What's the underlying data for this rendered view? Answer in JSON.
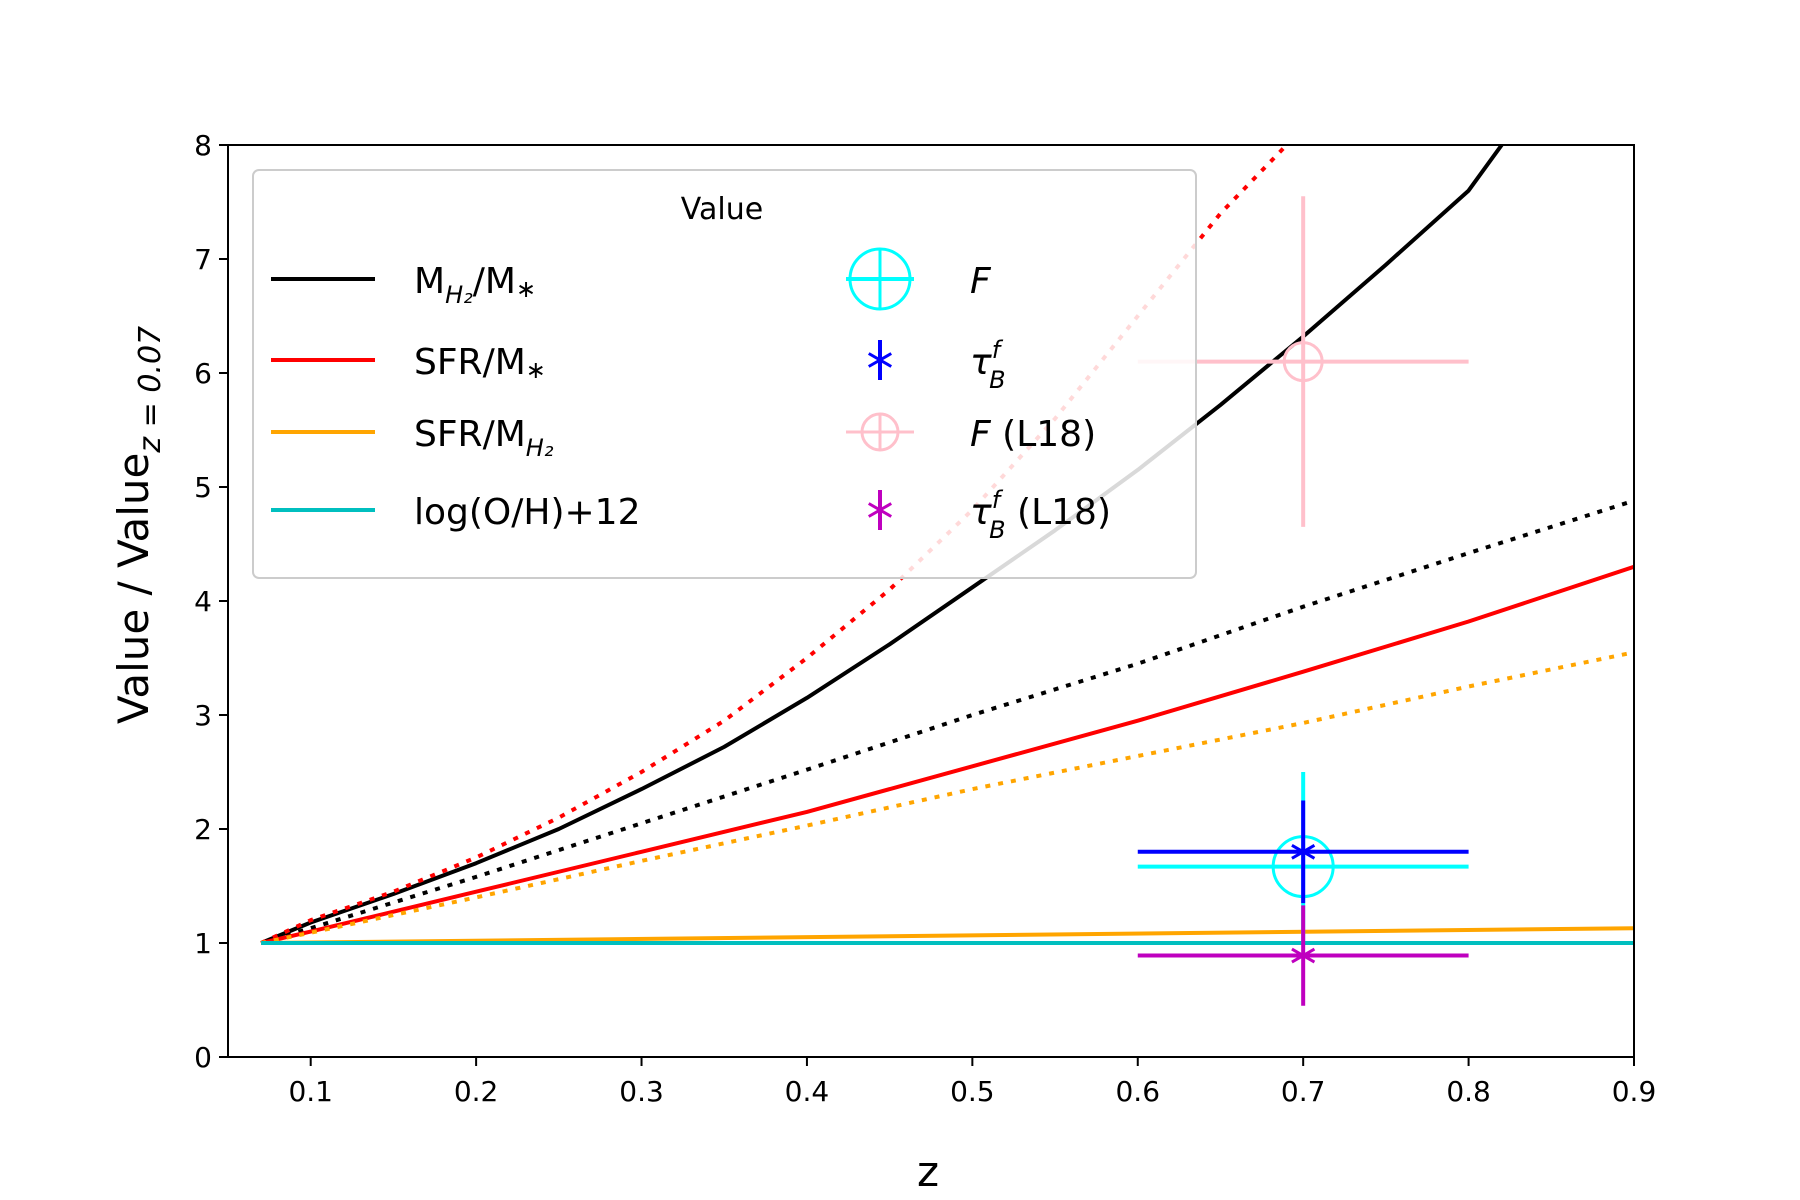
{
  "chart_data": {
    "type": "line",
    "xlabel": "z",
    "ylabel": "Value / Value",
    "ylabel_subscript": "z = 0.07",
    "xlim": [
      0.05,
      0.9
    ],
    "ylim": [
      0,
      8
    ],
    "x_ticks": [
      0.1,
      0.2,
      0.3,
      0.4,
      0.5,
      0.6,
      0.7,
      0.8,
      0.9
    ],
    "x_tick_labels": [
      "0.1",
      "0.2",
      "0.3",
      "0.4",
      "0.5",
      "0.6",
      "0.7",
      "0.8",
      "0.9"
    ],
    "y_ticks": [
      0,
      1,
      2,
      3,
      4,
      5,
      6,
      7,
      8
    ],
    "y_tick_labels": [
      "0",
      "1",
      "2",
      "3",
      "4",
      "5",
      "6",
      "7",
      "8"
    ],
    "grid": false,
    "legend": {
      "title": "Value",
      "placement": "top-left",
      "entries": [
        {
          "id": "mh2_mstar",
          "main": "M",
          "sub": "H₂",
          "rest": "/M",
          "sup": "∗",
          "color": "#000000",
          "kind": "line"
        },
        {
          "id": "sfr_mstar",
          "main": "SFR/M",
          "sub": "",
          "rest": "",
          "sup": "∗",
          "color": "#ff0000",
          "kind": "line"
        },
        {
          "id": "sfr_mh2",
          "main": "SFR/M",
          "sub": "H₂",
          "rest": "",
          "sup": "",
          "color": "#ffa500",
          "kind": "line"
        },
        {
          "id": "oh",
          "main": "log(O/H)+12",
          "sub": "",
          "rest": "",
          "sup": "",
          "color": "#00bfbf",
          "kind": "line"
        },
        {
          "id": "F",
          "main": "F",
          "italic": true,
          "sub": "",
          "suffix": "",
          "color": "#00ffff",
          "kind": "circle-plus"
        },
        {
          "id": "tauB",
          "main": "τ",
          "italic": true,
          "sub": "B",
          "supi": "f",
          "suffix": "",
          "color": "#0000ff",
          "kind": "star"
        },
        {
          "id": "F_L18",
          "main": "F",
          "italic": true,
          "sub": "",
          "suffix": " (L18)",
          "color": "#ffc0cb",
          "kind": "circle-plus"
        },
        {
          "id": "tauB_L18",
          "main": "τ",
          "italic": true,
          "sub": "B",
          "supi": "f",
          "suffix": " (L18)",
          "color": "#bf00bf",
          "kind": "star"
        }
      ]
    },
    "series": [
      {
        "name": "MH2/M*",
        "color": "#000000",
        "style": "solid",
        "x": [
          0.07,
          0.1,
          0.15,
          0.2,
          0.25,
          0.3,
          0.35,
          0.4,
          0.45,
          0.5,
          0.55,
          0.6,
          0.65,
          0.7,
          0.75,
          0.8,
          0.82
        ],
        "y": [
          1.0,
          1.18,
          1.43,
          1.7,
          2.0,
          2.35,
          2.72,
          3.15,
          3.62,
          4.12,
          4.62,
          5.15,
          5.72,
          6.32,
          6.95,
          7.6,
          8.0
        ]
      },
      {
        "name": "",
        "color": "#000000",
        "style": "dotted",
        "x": [
          0.07,
          0.1,
          0.2,
          0.3,
          0.4,
          0.5,
          0.6,
          0.7,
          0.8,
          0.9
        ],
        "y": [
          1.0,
          1.13,
          1.58,
          2.05,
          2.52,
          3.0,
          3.45,
          3.95,
          4.42,
          4.88
        ]
      },
      {
        "name": "SFR/M*",
        "color": "#ff0000",
        "style": "solid",
        "x": [
          0.07,
          0.1,
          0.2,
          0.3,
          0.4,
          0.5,
          0.6,
          0.7,
          0.8,
          0.9
        ],
        "y": [
          1.0,
          1.1,
          1.45,
          1.8,
          2.15,
          2.55,
          2.95,
          3.38,
          3.82,
          4.3
        ]
      },
      {
        "name": "",
        "color": "#ff0000",
        "style": "dotted",
        "x": [
          0.07,
          0.1,
          0.15,
          0.2,
          0.25,
          0.3,
          0.35,
          0.4,
          0.45,
          0.5,
          0.55,
          0.6,
          0.65,
          0.69
        ],
        "y": [
          1.0,
          1.2,
          1.45,
          1.75,
          2.1,
          2.5,
          2.95,
          3.5,
          4.1,
          4.8,
          5.6,
          6.5,
          7.4,
          8.0
        ]
      },
      {
        "name": "SFR/MH2",
        "color": "#ffa500",
        "style": "solid",
        "x": [
          0.07,
          0.9
        ],
        "y": [
          1.0,
          1.13
        ]
      },
      {
        "name": "",
        "color": "#ffa500",
        "style": "dotted",
        "x": [
          0.07,
          0.1,
          0.2,
          0.3,
          0.4,
          0.5,
          0.6,
          0.7,
          0.8,
          0.9
        ],
        "y": [
          1.0,
          1.09,
          1.4,
          1.72,
          2.03,
          2.35,
          2.64,
          2.93,
          3.25,
          3.55
        ]
      },
      {
        "name": "log(O/H)+12",
        "color": "#00bfbf",
        "style": "solid",
        "x": [
          0.07,
          0.9
        ],
        "y": [
          1.0,
          1.0
        ]
      }
    ],
    "error_points": [
      {
        "name": "F (L18)",
        "color": "#ffc0cb",
        "marker": "circle-plus",
        "x": 0.7,
        "y": 6.1,
        "xerr": [
          0.1,
          0.1
        ],
        "yerr": [
          1.45,
          1.45
        ]
      },
      {
        "name": "F",
        "color": "#00ffff",
        "marker": "circle-plus",
        "x": 0.7,
        "y": 1.67,
        "xerr": [
          0.1,
          0.1
        ],
        "yerr": [
          0.67,
          0.83
        ]
      },
      {
        "name": "τBf",
        "color": "#0000ff",
        "marker": "star",
        "x": 0.7,
        "y": 1.8,
        "xerr": [
          0.1,
          0.1
        ],
        "yerr": [
          0.45,
          0.45
        ]
      },
      {
        "name": "τBf (L18)",
        "color": "#bf00bf",
        "marker": "star",
        "x": 0.7,
        "y": 0.89,
        "xerr": [
          0.1,
          0.1
        ],
        "yerr": [
          0.44,
          0.44
        ]
      }
    ]
  }
}
